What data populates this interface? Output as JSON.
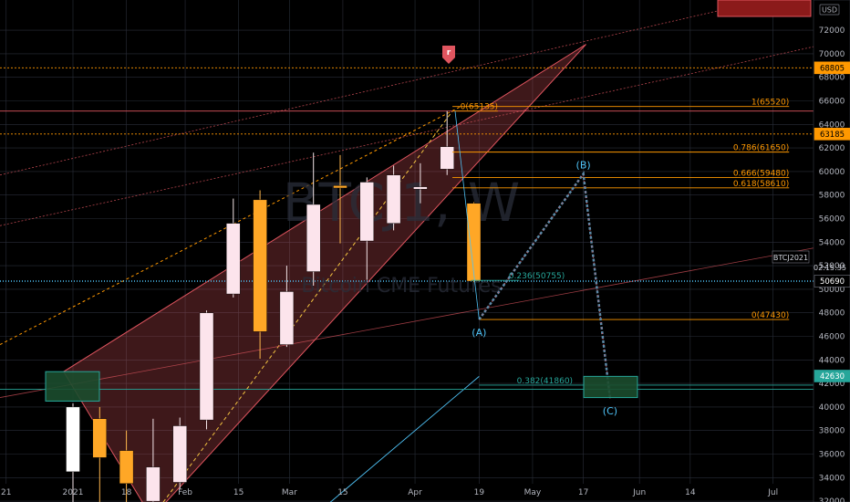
{
  "app": {
    "currency": "USD",
    "watermark_symbol": "BTCJ1,  W",
    "watermark_name": "Bitcoin CME Futures"
  },
  "chart_data": {
    "type": "candlestick",
    "symbol_tag": "BTCJ2021",
    "last_price": 50690,
    "countdown": "02:15:35",
    "ylim": [
      31000,
      76000
    ],
    "y_ticks": [
      32000,
      34000,
      36000,
      38000,
      40000,
      42000,
      44000,
      46000,
      48000,
      50000,
      52000,
      54000,
      56000,
      58000,
      60000,
      62000,
      64000,
      66000,
      68000,
      70000,
      72000
    ],
    "x_ticks": [
      {
        "label": "21",
        "i": -2.5
      },
      {
        "label": "2021",
        "i": 0
      },
      {
        "label": "18",
        "i": 2
      },
      {
        "label": "Feb",
        "i": 4.2
      },
      {
        "label": "15",
        "i": 6.2
      },
      {
        "label": "Mar",
        "i": 8.1
      },
      {
        "label": "15",
        "i": 10.1
      },
      {
        "label": "Apr",
        "i": 12.8
      },
      {
        "label": "19",
        "i": 15.2
      },
      {
        "label": "May",
        "i": 17.2
      },
      {
        "label": "17",
        "i": 19.1
      },
      {
        "label": "Jun",
        "i": 21.2
      },
      {
        "label": "14",
        "i": 23.1
      },
      {
        "label": "Jul",
        "i": 26.2
      }
    ],
    "candles": [
      {
        "o": 34500,
        "h": 40300,
        "l": 30800,
        "c": 40000
      },
      {
        "o": 39000,
        "h": 40000,
        "l": 31200,
        "c": 35700
      },
      {
        "o": 36300,
        "h": 38000,
        "l": 30700,
        "c": 33500
      },
      {
        "o": 32000,
        "h": 39000,
        "l": 30500,
        "c": 34900
      },
      {
        "o": 33600,
        "h": 39100,
        "l": 33000,
        "c": 38400
      },
      {
        "o": 38900,
        "h": 48200,
        "l": 38100,
        "c": 48000
      },
      {
        "o": 49600,
        "h": 57700,
        "l": 49300,
        "c": 55600
      },
      {
        "o": 57600,
        "h": 58400,
        "l": 44100,
        "c": 46400
      },
      {
        "o": 45300,
        "h": 52000,
        "l": 45100,
        "c": 49800
      },
      {
        "o": 51500,
        "h": 61600,
        "l": 50300,
        "c": 57200
      },
      {
        "o": 58800,
        "h": 61400,
        "l": 53900,
        "c": 58600
      },
      {
        "o": 54100,
        "h": 59500,
        "l": 50800,
        "c": 59100
      },
      {
        "o": 55600,
        "h": 60500,
        "l": 55000,
        "c": 59700
      },
      {
        "o": 58500,
        "h": 60700,
        "l": 57300,
        "c": 58700
      },
      {
        "o": 60200,
        "h": 65135,
        "l": 59700,
        "c": 62100
      },
      {
        "o": 57300,
        "h": 57400,
        "l": 50600,
        "c": 50690
      }
    ],
    "horizontal_levels": [
      {
        "price": 65135,
        "color": "#e0555f"
      },
      {
        "price": 68805,
        "color": "#ff9800",
        "label": "68805"
      },
      {
        "price": 63185,
        "color": "#ff9800",
        "label": "63185"
      },
      {
        "price": 41500,
        "color": "#26a69a"
      },
      {
        "price": 50690,
        "color": "#4fc3f7"
      }
    ],
    "price_tags": [
      {
        "price": 68805,
        "label": "68805",
        "bg": "#ff9800",
        "fg": "#000000"
      },
      {
        "price": 63185,
        "label": "63185",
        "bg": "#ff9800",
        "fg": "#000000"
      },
      {
        "price": 50690,
        "label": "50690",
        "bg": "#000000",
        "fg": "#ffffff"
      },
      {
        "price": 42630,
        "label": "42630",
        "bg": "#26a69a",
        "fg": "#ffffff"
      }
    ],
    "fib_levels": [
      {
        "label": "0(65135)",
        "price": 65135,
        "i0": 14.2,
        "i1": 15.9,
        "color": "#ff9800"
      },
      {
        "label": "1(65520)",
        "price": 65520,
        "i0": 14.2,
        "i1": 26.8,
        "color": "#ff9800"
      },
      {
        "label": "0.786(61650)",
        "price": 61650,
        "i0": 14.2,
        "i1": 26.8,
        "color": "#ff9800"
      },
      {
        "label": "0.666(59480)",
        "price": 59480,
        "i0": 14.2,
        "i1": 26.8,
        "color": "#ff9800"
      },
      {
        "label": "0.618(58610)",
        "price": 58610,
        "i0": 14.2,
        "i1": 26.8,
        "color": "#ff9800"
      },
      {
        "label": "0(47430)",
        "price": 47430,
        "i0": 15.2,
        "i1": 26.8,
        "color": "#ff9800"
      },
      {
        "label": "0.236(50755)",
        "price": 50755,
        "i0": 14.9,
        "i1": 16.7,
        "color": "#26a69a"
      },
      {
        "label": "0.382(41860)",
        "price": 41860,
        "i0": 15.2,
        "i1": 29.0,
        "color": "#26a69a"
      }
    ],
    "wave_points": [
      {
        "label": "(A)",
        "i": 15.2,
        "price": 47430
      },
      {
        "label": "(B)",
        "i": 19.1,
        "price": 59800
      },
      {
        "label": "(C)",
        "i": 20.1,
        "price": 40700
      }
    ],
    "pitchfork_wedge": {
      "apex": {
        "i": 2.95,
        "price": 30600
      },
      "upper": {
        "i": 19.2,
        "price": 70800
      },
      "lower": {
        "i": -0.35,
        "price": 43000
      }
    },
    "flag_marker": "r"
  }
}
